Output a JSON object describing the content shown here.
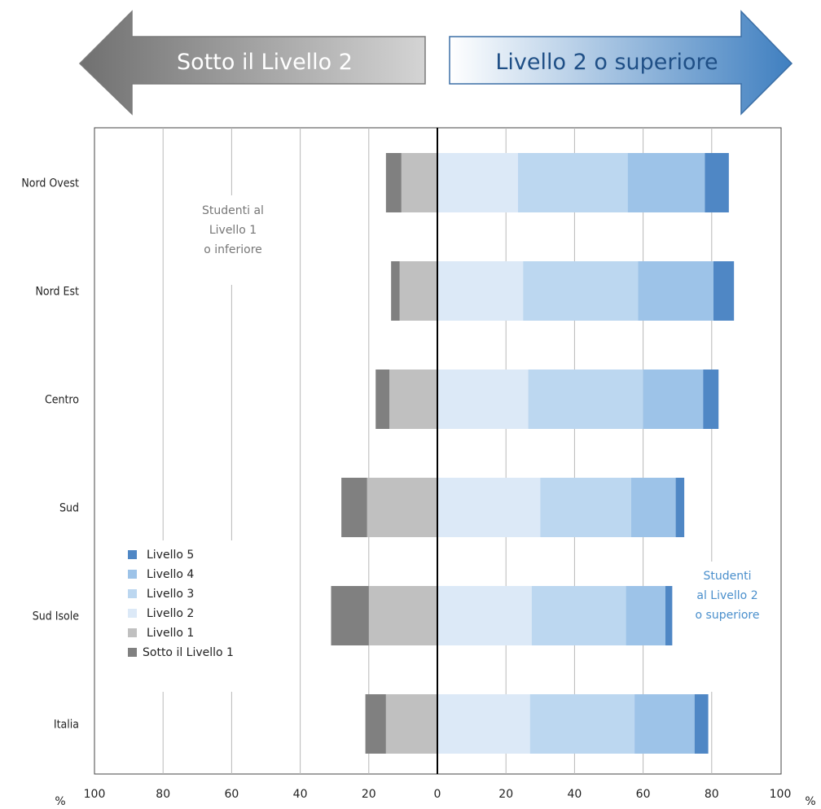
{
  "header": {
    "left_arrow_label": "Sotto il Livello 2",
    "right_arrow_label": "Livello 2 o superiore"
  },
  "annotations": {
    "left_note": [
      "Studenti al",
      "Livello 1",
      "o inferiore"
    ],
    "right_note": [
      "Studenti",
      "al Livello 2",
      "o superiore"
    ]
  },
  "chart_data": {
    "type": "bar",
    "orientation": "horizontal",
    "stacked": "diverging",
    "categories": [
      "Nord Ovest",
      "Nord Est",
      "Centro",
      "Sud",
      "Sud Isole",
      "Italia"
    ],
    "x_unit_label": "%",
    "x_ticks": [
      100,
      80,
      60,
      40,
      20,
      0,
      20,
      40,
      60,
      80,
      100
    ],
    "xlim": [
      -100,
      100
    ],
    "grid": true,
    "legend_position": "bottom-left",
    "series": [
      {
        "name": "Sotto il Livello 1",
        "side": "negative",
        "color": "#808080",
        "values": [
          4.5,
          2.5,
          4,
          7.5,
          11,
          6
        ]
      },
      {
        "name": "Livello 1",
        "side": "negative",
        "color": "#c0c0c0",
        "values": [
          10.5,
          11,
          14,
          20.5,
          20,
          15
        ]
      },
      {
        "name": "Livello 2",
        "side": "positive",
        "color": "#dce9f7",
        "values": [
          23.5,
          25,
          26.5,
          30,
          27.5,
          27
        ]
      },
      {
        "name": "Livello 3",
        "side": "positive",
        "color": "#bcd7f0",
        "values": [
          32,
          33.5,
          33.5,
          26.5,
          27.5,
          30.5
        ]
      },
      {
        "name": "Livello 4",
        "side": "positive",
        "color": "#9dc3e8",
        "values": [
          22.5,
          22,
          17.5,
          13,
          11.5,
          17.5
        ]
      },
      {
        "name": "Livello 5",
        "side": "positive",
        "color": "#4f87c5",
        "values": [
          7,
          6,
          4.5,
          2.5,
          2,
          4
        ]
      }
    ],
    "legend_order": [
      "Livello 5",
      "Livello 4",
      "Livello 3",
      "Livello 2",
      "Livello 1",
      "Sotto il Livello 1"
    ]
  }
}
